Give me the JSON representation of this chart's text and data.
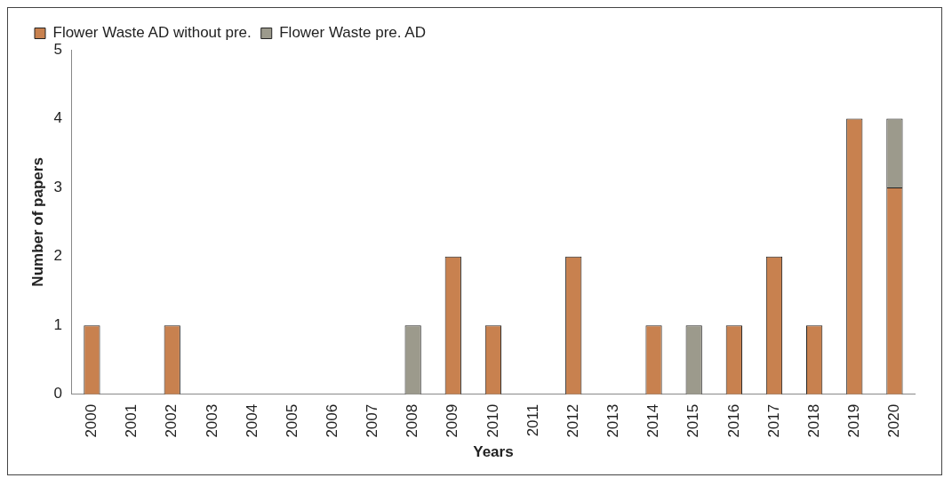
{
  "chart_data": {
    "type": "bar",
    "stacked": true,
    "xlabel": "Years",
    "ylabel": "Number of papers",
    "categories": [
      "2000",
      "2001",
      "2002",
      "2003",
      "2004",
      "2005",
      "2006",
      "2007",
      "2008",
      "2009",
      "2010",
      "2011",
      "2012",
      "2013",
      "2014",
      "2015",
      "2016",
      "2017",
      "2018",
      "2019",
      "2020"
    ],
    "series": [
      {
        "name": "Flower Waste AD without pre.",
        "color": "#c8814f",
        "values": [
          1,
          null,
          1,
          null,
          null,
          null,
          null,
          null,
          null,
          2,
          1,
          null,
          2,
          null,
          1,
          null,
          1,
          2,
          1,
          4,
          3
        ]
      },
      {
        "name": "Flower Waste pre. AD",
        "color": "#9c9a8c",
        "values": [
          null,
          null,
          null,
          null,
          null,
          null,
          null,
          null,
          1,
          null,
          null,
          null,
          null,
          null,
          null,
          1,
          null,
          null,
          null,
          null,
          1
        ]
      }
    ],
    "ylim": [
      0,
      5
    ],
    "yticks": [
      0,
      1,
      2,
      3,
      4,
      5
    ],
    "grid": false,
    "legend": "top left"
  }
}
